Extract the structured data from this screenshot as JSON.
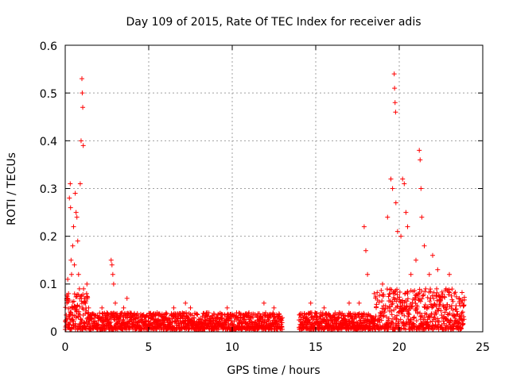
{
  "chart_data": {
    "type": "scatter",
    "title": "Day 109 of 2015, Rate Of TEC Index for receiver adis",
    "xlabel": "GPS time / hours",
    "ylabel": "ROTI / TECUs",
    "xlim": [
      0,
      25
    ],
    "ylim": [
      0,
      0.6
    ],
    "x_ticks": [
      "0",
      "5",
      "10",
      "15",
      "20",
      "25"
    ],
    "y_ticks": [
      "0",
      "0.1",
      "0.2",
      "0.3",
      "0.4",
      "0.5",
      "0.6"
    ],
    "grid": true,
    "marker": "+",
    "color": "#ff0000",
    "series": [
      {
        "name": "ROTI",
        "points": [
          [
            0.05,
            0.02
          ],
          [
            0.1,
            0.06
          ],
          [
            0.15,
            0.11
          ],
          [
            0.2,
            0.08
          ],
          [
            0.25,
            0.28
          ],
          [
            0.3,
            0.31
          ],
          [
            0.32,
            0.26
          ],
          [
            0.35,
            0.15
          ],
          [
            0.38,
            0.12
          ],
          [
            0.4,
            0.05
          ],
          [
            0.45,
            0.18
          ],
          [
            0.5,
            0.22
          ],
          [
            0.55,
            0.14
          ],
          [
            0.6,
            0.29
          ],
          [
            0.65,
            0.25
          ],
          [
            0.7,
            0.24
          ],
          [
            0.75,
            0.19
          ],
          [
            0.8,
            0.12
          ],
          [
            0.85,
            0.09
          ],
          [
            0.9,
            0.31
          ],
          [
            0.95,
            0.4
          ],
          [
            1.0,
            0.53
          ],
          [
            1.02,
            0.5
          ],
          [
            1.05,
            0.47
          ],
          [
            1.08,
            0.39
          ],
          [
            1.1,
            0.09
          ],
          [
            1.15,
            0.07
          ],
          [
            1.2,
            0.06
          ],
          [
            1.3,
            0.1
          ],
          [
            1.4,
            0.05
          ],
          [
            2.2,
            0.05
          ],
          [
            2.5,
            0.04
          ],
          [
            2.75,
            0.15
          ],
          [
            2.8,
            0.14
          ],
          [
            2.85,
            0.12
          ],
          [
            2.9,
            0.1
          ],
          [
            3.0,
            0.06
          ],
          [
            3.5,
            0.05
          ],
          [
            3.7,
            0.07
          ],
          [
            5.5,
            0.04
          ],
          [
            6.5,
            0.05
          ],
          [
            7.2,
            0.06
          ],
          [
            7.5,
            0.05
          ],
          [
            8.5,
            0.04
          ],
          [
            9.7,
            0.05
          ],
          [
            11.0,
            0.04
          ],
          [
            11.9,
            0.06
          ],
          [
            12.5,
            0.05
          ],
          [
            14.7,
            0.06
          ],
          [
            15.5,
            0.05
          ],
          [
            17.0,
            0.06
          ],
          [
            17.6,
            0.06
          ],
          [
            17.9,
            0.22
          ],
          [
            18.0,
            0.17
          ],
          [
            18.1,
            0.12
          ],
          [
            18.5,
            0.08
          ],
          [
            19.0,
            0.1
          ],
          [
            19.3,
            0.24
          ],
          [
            19.5,
            0.32
          ],
          [
            19.6,
            0.3
          ],
          [
            19.7,
            0.54
          ],
          [
            19.72,
            0.51
          ],
          [
            19.75,
            0.48
          ],
          [
            19.78,
            0.46
          ],
          [
            19.8,
            0.27
          ],
          [
            19.9,
            0.21
          ],
          [
            20.1,
            0.2
          ],
          [
            20.2,
            0.32
          ],
          [
            20.3,
            0.31
          ],
          [
            20.4,
            0.25
          ],
          [
            20.5,
            0.22
          ],
          [
            20.7,
            0.12
          ],
          [
            21.0,
            0.15
          ],
          [
            21.2,
            0.38
          ],
          [
            21.25,
            0.36
          ],
          [
            21.3,
            0.3
          ],
          [
            21.35,
            0.24
          ],
          [
            21.5,
            0.18
          ],
          [
            21.8,
            0.12
          ],
          [
            22.0,
            0.16
          ],
          [
            22.3,
            0.13
          ],
          [
            22.8,
            0.09
          ],
          [
            23.0,
            0.12
          ],
          [
            23.3,
            0.08
          ],
          [
            23.6,
            0.06
          ]
        ]
      }
    ],
    "dense_band": {
      "description_free": true,
      "segments": [
        [
          0.0,
          13.0
        ],
        [
          14.0,
          23.9
        ]
      ],
      "base_min": 0.005,
      "base_max": 0.04,
      "elevated_ranges": [
        [
          0.0,
          1.4,
          0.08
        ],
        [
          18.5,
          23.9,
          0.09
        ]
      ]
    }
  }
}
